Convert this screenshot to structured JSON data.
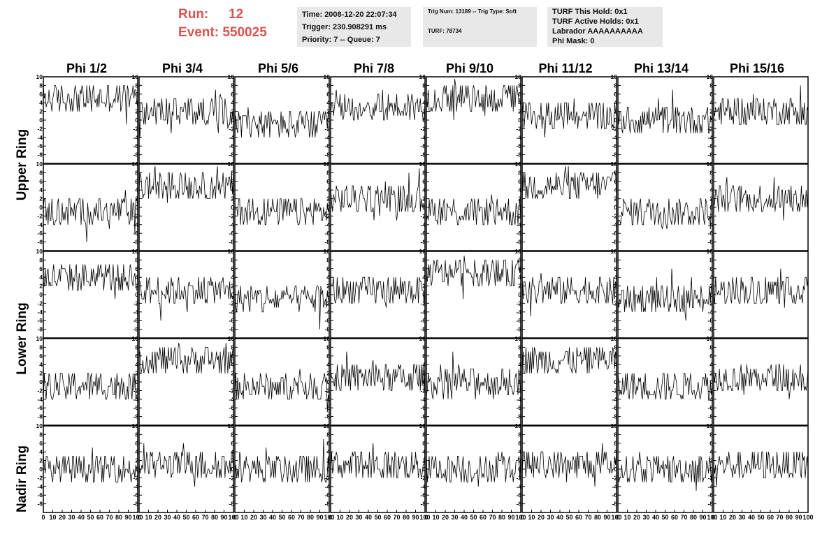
{
  "header": {
    "run_label": "Run:",
    "run_value": "12",
    "event_label": "Event:",
    "event_value": "550025"
  },
  "info1": {
    "time": "Time: 2008-12-20 22:07:34",
    "trigger": "Trigger: 230.908291 ms",
    "priority": "Priority: 7 -- Queue: 7"
  },
  "info2": {
    "trig": "Trig Num: 13189 -- Trig Type: Soft",
    "turf": "TURF: 78734"
  },
  "info3": {
    "hold": "TURF This Hold: 0x1",
    "active": "TURF Active Holds: 0x1",
    "labrador": "Labrador AAAAAAAAAA",
    "phimask": "Phi Mask: 0"
  },
  "columns": [
    "Phi 1/2",
    "Phi 3/4",
    "Phi 5/6",
    "Phi 7/8",
    "Phi 9/10",
    "Phi 11/12",
    "Phi 13/14",
    "Phi 15/16"
  ],
  "rings": [
    "Upper Ring",
    "Lower Ring",
    "Nadir Ring"
  ],
  "chart_data": {
    "type": "line",
    "rows": 5,
    "cols": 8,
    "xlim": [
      0,
      100
    ],
    "ylim": [
      -10,
      10
    ],
    "x_ticks": [
      0,
      10,
      20,
      30,
      40,
      50,
      60,
      70,
      80,
      90,
      100
    ],
    "y_ticks": [
      -8,
      -6,
      -4,
      -2,
      0,
      2,
      4,
      6,
      8,
      10
    ],
    "panel_baselines": [
      [
        5,
        2,
        -1,
        3,
        5,
        1,
        0,
        2
      ],
      [
        -1,
        5,
        -1,
        2,
        -1,
        5,
        -1,
        2
      ],
      [
        4,
        1,
        -1,
        1,
        5,
        1,
        -1,
        1
      ],
      [
        -1,
        5,
        -1,
        1,
        0,
        5,
        -1,
        1
      ],
      [
        0,
        1,
        0,
        1,
        0,
        1,
        0,
        1
      ]
    ]
  }
}
